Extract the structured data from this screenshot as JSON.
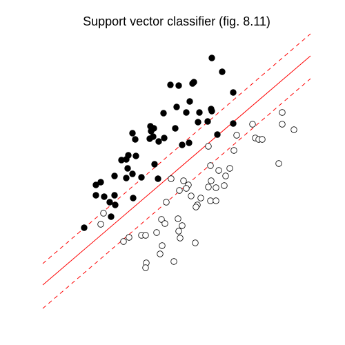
{
  "chart_data": {
    "type": "scatter",
    "title": "Support vector classifier (fig. 8.11)",
    "xlim": [
      60,
      450
    ],
    "ylim": [
      50,
      455
    ],
    "series": [
      {
        "color": "#000000",
        "fill": "#000000",
        "x": [
          307,
          322,
          247,
          259,
          279,
          281,
          338,
          275,
          256,
          306,
          307,
          289,
          270,
          237,
          301,
          287,
          338,
          218,
          223,
          219,
          254,
          192,
          196,
          222,
          217,
          238,
          230,
          274,
          264,
          315,
          186,
          197,
          176,
          183,
          185,
          224,
          192,
          183,
          166,
          205,
          229,
          146,
          139,
          139,
          166,
          151,
          159,
          167,
          193,
          161,
          122
        ],
        "y": [
          416,
          396,
          377,
          376,
          379,
          381,
          366,
          353,
          345,
          342,
          339,
          337,
          337,
          336,
          324,
          323,
          321,
          317,
          314,
          310,
          314,
          307,
          298,
          302,
          299,
          300,
          295,
          293,
          290,
          305,
          275,
          274,
          268,
          269,
          256,
          262,
          248,
          242,
          245,
          243,
          241,
          236,
          232,
          217,
          217,
          215,
          207,
          203,
          213,
          186,
          170
        ]
      },
      {
        "color": "#000000",
        "fill": "none",
        "x": [
          366,
          409,
          409,
          426,
          343,
          370,
          375,
          380,
          302,
          339,
          404,
          305,
          317,
          333,
          248,
          266,
          273,
          260,
          270,
          327,
          306,
          302,
          313,
          325,
          277,
          291,
          305,
          313,
          241,
          286,
          284,
          150,
          234,
          258,
          146,
          239,
          264,
          259,
          227,
          205,
          211,
          187,
          179,
          261,
          283,
          235,
          232,
          252,
          212,
          211
        ],
        "y": [
          320,
          337,
          320,
          312,
          304,
          300,
          298,
          298,
          288,
          282,
          263,
          260,
          253,
          256,
          241,
          238,
          232,
          224,
          227,
          245,
          238,
          229,
          228,
          231,
          216,
          213,
          209,
          209,
          207,
          203,
          200,
          191,
          182,
          183,
          175,
          176,
          173,
          165,
          163,
          159,
          159,
          156,
          150,
          155,
          148,
          144,
          132,
          121,
          119,
          112
        ]
      }
    ],
    "lines": [
      {
        "color": "#ff0000",
        "dashed": false,
        "x": [
          62,
          450
        ],
        "y": [
          87,
          419
        ]
      },
      {
        "color": "#ff0000",
        "dashed": true,
        "x": [
          62,
          450
        ],
        "y": [
          118,
          451
        ]
      },
      {
        "color": "#ff0000",
        "dashed": true,
        "x": [
          62,
          450
        ],
        "y": [
          53,
          386
        ]
      }
    ]
  }
}
